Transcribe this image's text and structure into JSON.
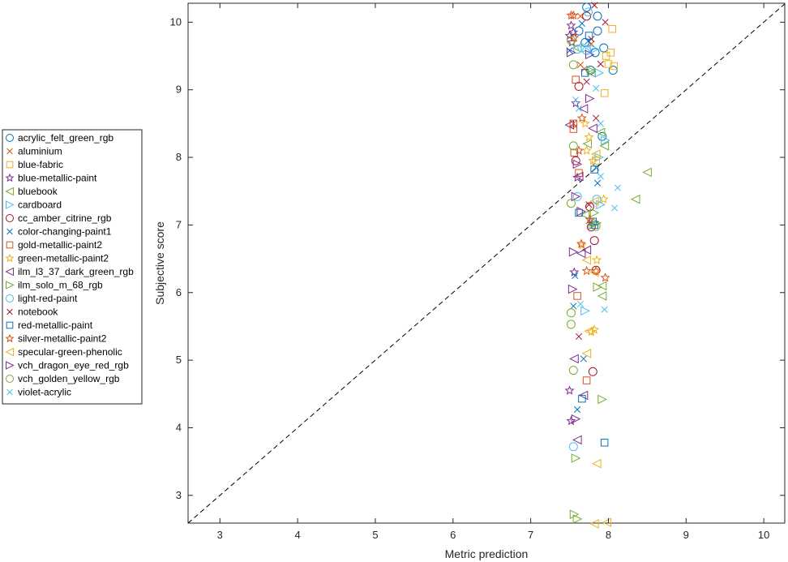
{
  "chart_data": {
    "type": "scatter",
    "title": "",
    "xlabel": "Metric prediction",
    "ylabel": "Subjective score",
    "xlim": [
      2.59,
      10.27
    ],
    "ylim": [
      2.59,
      10.28
    ],
    "xticks": [
      3,
      4,
      5,
      6,
      7,
      8,
      9,
      10
    ],
    "yticks": [
      3,
      4,
      5,
      6,
      7,
      8,
      9,
      10
    ],
    "grid": false,
    "legend_position": "outside-left",
    "reference_line": {
      "style": "dashed",
      "color": "#000000",
      "from": [
        2.59,
        2.59
      ],
      "to": [
        10.27,
        10.27
      ]
    },
    "series": [
      {
        "name": "acrylic_felt_green_rgb",
        "marker": "circle",
        "color": "#0072BD",
        "points": [
          [
            7.72,
            10.22
          ],
          [
            7.86,
            10.09
          ],
          [
            7.86,
            9.87
          ],
          [
            7.94,
            9.62
          ],
          [
            8.06,
            9.29
          ],
          [
            7.77,
            9.29
          ],
          [
            7.62,
            9.87
          ],
          [
            7.92,
            8.31
          ],
          [
            7.7,
            9.7
          ],
          [
            7.83,
            9.55
          ]
        ]
      },
      {
        "name": "aluminium",
        "marker": "x",
        "color": "#D95319",
        "points": [
          [
            7.64,
            10.09
          ],
          [
            7.64,
            9.37
          ],
          [
            7.75,
            7.06
          ],
          [
            7.69,
            9.31
          ],
          [
            7.78,
            9.68
          ],
          [
            7.55,
            8.5
          ]
        ]
      },
      {
        "name": "blue-fabric",
        "marker": "square",
        "color": "#EDB120",
        "points": [
          [
            8.05,
            9.9
          ],
          [
            8.03,
            9.55
          ],
          [
            8.07,
            9.35
          ],
          [
            7.97,
            9.5
          ],
          [
            8.0,
            9.38
          ],
          [
            7.95,
            8.95
          ],
          [
            7.84,
            7.95
          ]
        ]
      },
      {
        "name": "blue-metallic-paint",
        "marker": "star",
        "color": "#7E2F8E",
        "points": [
          [
            7.52,
            9.95
          ],
          [
            7.5,
            9.8
          ],
          [
            7.55,
            9.85
          ],
          [
            7.53,
            9.7
          ],
          [
            7.58,
            8.8
          ],
          [
            7.5,
            4.55
          ],
          [
            7.52,
            4.1
          ],
          [
            7.56,
            6.3
          ],
          [
            7.6,
            7.7
          ]
        ]
      },
      {
        "name": "bluebook",
        "marker": "triangle-left",
        "color": "#77AC30",
        "points": [
          [
            7.78,
            9.25
          ],
          [
            7.9,
            8.37
          ],
          [
            7.95,
            8.17
          ],
          [
            8.5,
            7.78
          ],
          [
            8.35,
            7.38
          ],
          [
            7.7,
            7.15
          ],
          [
            7.92,
            6.1
          ],
          [
            7.92,
            5.95
          ],
          [
            7.73,
            8.2
          ],
          [
            7.6,
            9.62
          ]
        ]
      },
      {
        "name": "cardboard",
        "marker": "triangle-right",
        "color": "#4DBEEE",
        "points": [
          [
            7.82,
            9.6
          ],
          [
            7.88,
            9.25
          ],
          [
            7.96,
            8.25
          ],
          [
            7.88,
            8.0
          ],
          [
            7.7,
            5.73
          ],
          [
            7.9,
            7.3
          ]
        ]
      },
      {
        "name": "cc_amber_citrine_rgb",
        "marker": "circle",
        "color": "#A2142F",
        "points": [
          [
            7.72,
            10.09
          ],
          [
            7.62,
            9.05
          ],
          [
            7.58,
            7.95
          ],
          [
            7.76,
            7.27
          ],
          [
            7.82,
            6.77
          ],
          [
            7.84,
            6.33
          ],
          [
            7.8,
            4.83
          ],
          [
            7.78,
            6.97
          ]
        ]
      },
      {
        "name": "color-changing-paint1",
        "marker": "x",
        "color": "#0072BD",
        "points": [
          [
            7.66,
            9.98
          ],
          [
            7.5,
            9.58
          ],
          [
            7.74,
            9.72
          ],
          [
            7.86,
            7.62
          ],
          [
            7.57,
            6.25
          ],
          [
            7.55,
            5.8
          ],
          [
            7.68,
            5.02
          ],
          [
            7.6,
            4.27
          ],
          [
            7.84,
            7.85
          ]
        ]
      },
      {
        "name": "gold-metallic-paint2",
        "marker": "square",
        "color": "#D95319",
        "points": [
          [
            7.58,
            9.15
          ],
          [
            7.55,
            8.5
          ],
          [
            7.55,
            8.42
          ],
          [
            7.56,
            8.07
          ],
          [
            7.62,
            7.77
          ],
          [
            7.6,
            5.95
          ],
          [
            7.72,
            4.7
          ]
        ]
      },
      {
        "name": "green-metallic-paint2",
        "marker": "star",
        "color": "#EDB120",
        "points": [
          [
            7.7,
            8.5
          ],
          [
            7.75,
            8.3
          ],
          [
            7.72,
            8.1
          ],
          [
            7.8,
            7.95
          ],
          [
            7.94,
            7.38
          ],
          [
            7.85,
            6.48
          ],
          [
            7.82,
            5.45
          ],
          [
            7.78,
            5.42
          ],
          [
            7.66,
            6.7
          ]
        ]
      },
      {
        "name": "ilm_l3_37_dark_green_rgb",
        "marker": "triangle-left",
        "color": "#7E2F8E",
        "points": [
          [
            7.8,
            8.43
          ],
          [
            7.68,
            8.72
          ],
          [
            7.72,
            6.63
          ],
          [
            7.65,
            6.58
          ],
          [
            7.68,
            4.48
          ],
          [
            7.6,
            3.82
          ],
          [
            7.56,
            5.02
          ],
          [
            7.62,
            7.72
          ],
          [
            7.5,
            8.48
          ]
        ]
      },
      {
        "name": "ilm_solo_m_68_rgb",
        "marker": "triangle-right",
        "color": "#77AC30",
        "points": [
          [
            7.78,
            9.28
          ],
          [
            7.85,
            7.03
          ],
          [
            7.82,
            7.18
          ],
          [
            7.86,
            6.08
          ],
          [
            7.92,
            4.42
          ],
          [
            7.58,
            3.55
          ],
          [
            7.56,
            2.72
          ],
          [
            7.6,
            2.65
          ],
          [
            7.8,
            7.0
          ]
        ]
      },
      {
        "name": "light-red-paint",
        "marker": "circle",
        "color": "#4DBEEE",
        "points": [
          [
            7.74,
            10.15
          ],
          [
            7.66,
            9.62
          ],
          [
            7.6,
            9.6
          ],
          [
            7.6,
            7.42
          ],
          [
            7.85,
            7.38
          ],
          [
            7.55,
            3.72
          ],
          [
            7.72,
            9.58
          ]
        ]
      },
      {
        "name": "notebook",
        "marker": "x",
        "color": "#A2142F",
        "points": [
          [
            7.82,
            10.25
          ],
          [
            7.96,
            10.0
          ],
          [
            7.9,
            9.38
          ],
          [
            7.78,
            9.75
          ],
          [
            7.72,
            9.12
          ],
          [
            7.84,
            8.58
          ],
          [
            7.62,
            5.35
          ],
          [
            7.75,
            7.3
          ]
        ]
      },
      {
        "name": "red-metallic-paint",
        "marker": "square",
        "color": "#0072BD",
        "points": [
          [
            7.75,
            9.8
          ],
          [
            7.7,
            9.25
          ],
          [
            7.82,
            7.82
          ],
          [
            7.62,
            7.18
          ],
          [
            7.8,
            7.05
          ],
          [
            7.82,
            7.0
          ],
          [
            7.66,
            4.43
          ],
          [
            7.95,
            3.78
          ]
        ]
      },
      {
        "name": "silver-metallic-paint2",
        "marker": "star",
        "color": "#D95319",
        "points": [
          [
            7.52,
            10.1
          ],
          [
            7.55,
            10.1
          ],
          [
            7.56,
            9.77
          ],
          [
            7.66,
            8.58
          ],
          [
            7.62,
            8.1
          ],
          [
            7.76,
            7.08
          ],
          [
            7.65,
            6.72
          ],
          [
            7.72,
            6.32
          ],
          [
            7.96,
            6.22
          ],
          [
            7.84,
            6.32
          ]
        ]
      },
      {
        "name": "specular-green-phenolic",
        "marker": "triangle-left",
        "color": "#EDB120",
        "points": [
          [
            7.84,
            8.05
          ],
          [
            7.82,
            7.35
          ],
          [
            7.82,
            6.3
          ],
          [
            7.72,
            6.48
          ],
          [
            7.75,
            5.43
          ],
          [
            7.72,
            5.1
          ],
          [
            7.85,
            3.47
          ],
          [
            7.82,
            2.58
          ],
          [
            7.98,
            2.6
          ]
        ]
      },
      {
        "name": "vch_dragon_eye_red_rgb",
        "marker": "triangle-right",
        "color": "#7E2F8E",
        "points": [
          [
            7.52,
            9.55
          ],
          [
            7.76,
            9.52
          ],
          [
            7.76,
            8.87
          ],
          [
            7.58,
            7.42
          ],
          [
            7.65,
            7.2
          ],
          [
            7.55,
            6.6
          ],
          [
            7.54,
            6.05
          ],
          [
            7.58,
            4.13
          ],
          [
            7.6,
            7.9
          ]
        ]
      },
      {
        "name": "vch_golden_yellow_rgb",
        "marker": "circle",
        "color": "#77AC30",
        "points": [
          [
            7.52,
            9.73
          ],
          [
            7.55,
            9.37
          ],
          [
            7.55,
            8.17
          ],
          [
            7.52,
            7.32
          ],
          [
            7.52,
            5.7
          ],
          [
            7.52,
            5.53
          ],
          [
            7.55,
            4.85
          ],
          [
            7.84,
            6.98
          ]
        ]
      },
      {
        "name": "violet-acrylic",
        "marker": "x",
        "color": "#4DBEEE",
        "points": [
          [
            7.76,
            9.57
          ],
          [
            7.84,
            9.02
          ],
          [
            7.58,
            8.85
          ],
          [
            7.62,
            8.72
          ],
          [
            7.9,
            7.72
          ],
          [
            8.12,
            7.55
          ],
          [
            8.08,
            7.25
          ],
          [
            7.95,
            5.75
          ],
          [
            7.64,
            5.83
          ],
          [
            7.9,
            8.5
          ]
        ]
      }
    ]
  },
  "legend_items": [
    "acrylic_felt_green_rgb",
    "aluminium",
    "blue-fabric",
    "blue-metallic-paint",
    "bluebook",
    "cardboard",
    "cc_amber_citrine_rgb",
    "color-changing-paint1",
    "gold-metallic-paint2",
    "green-metallic-paint2",
    "ilm_l3_37_dark_green_rgb",
    "ilm_solo_m_68_rgb",
    "light-red-paint",
    "notebook",
    "red-metallic-paint",
    "silver-metallic-paint2",
    "specular-green-phenolic",
    "vch_dragon_eye_red_rgb",
    "vch_golden_yellow_rgb",
    "violet-acrylic"
  ]
}
